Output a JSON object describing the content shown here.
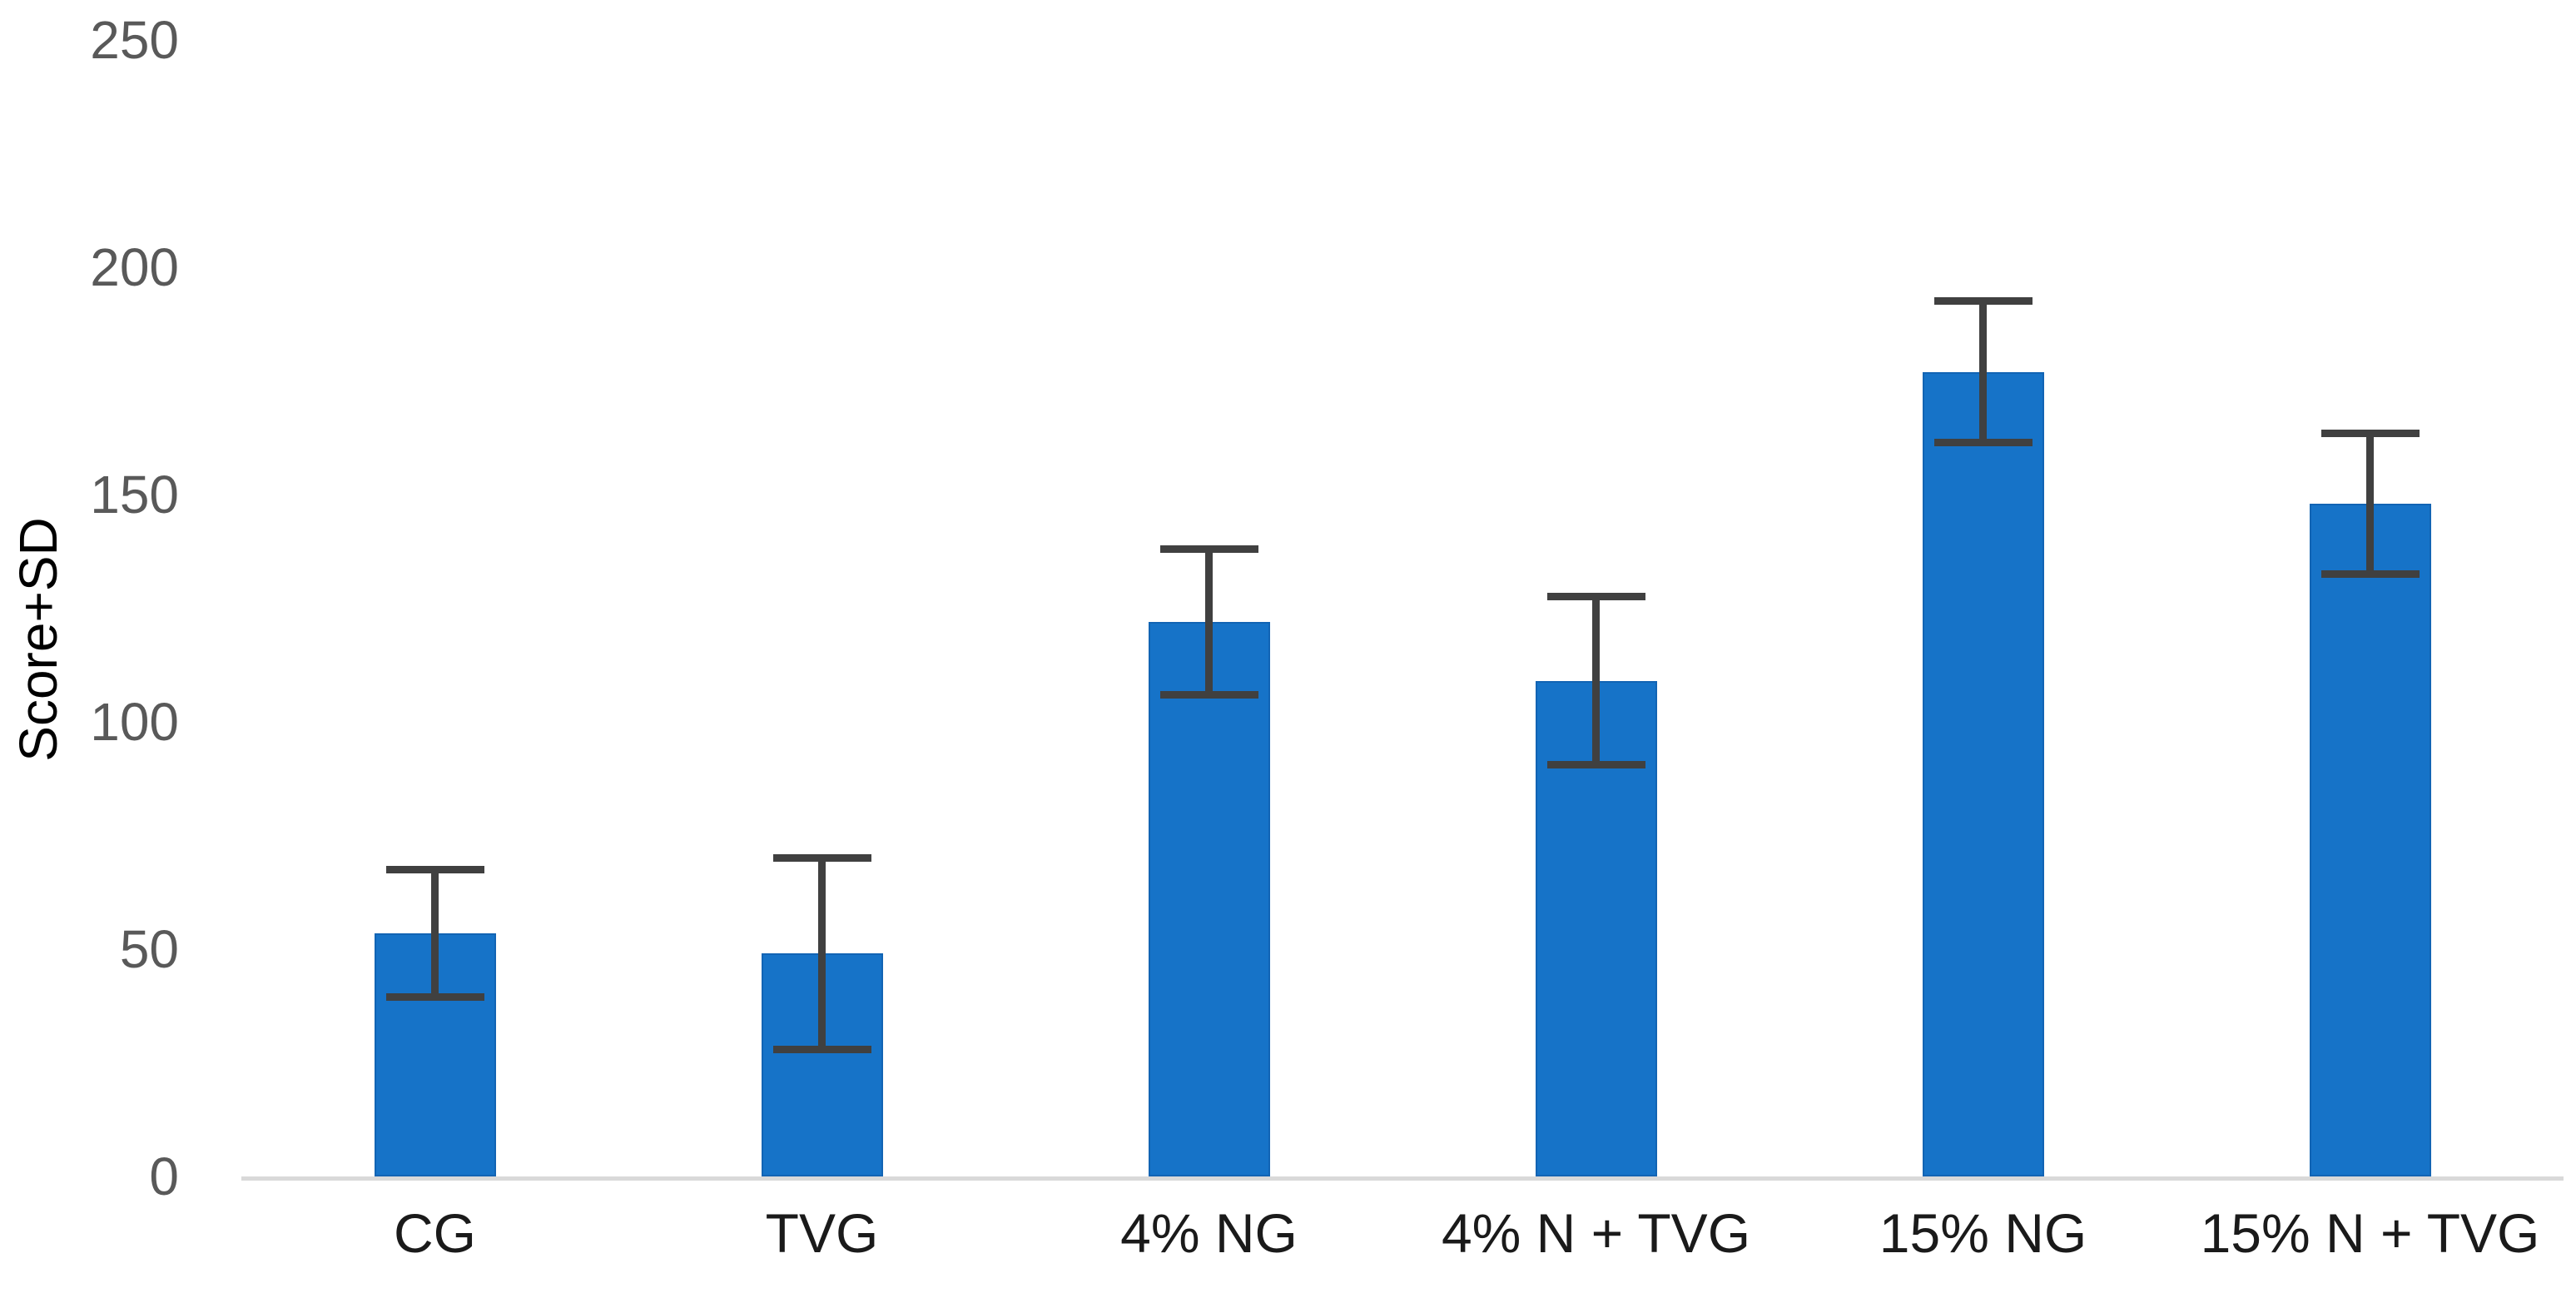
{
  "chart_data": {
    "type": "bar",
    "title": "",
    "xlabel": "",
    "ylabel": "Score+SD",
    "categories": [
      "CG",
      "TVG",
      "4% NG",
      "4% N + TVG",
      "15% NG",
      "15% N + TVG"
    ],
    "series": [
      {
        "name": "Score+SD",
        "values": [
          53.5,
          49,
          122,
          109,
          177,
          148
        ]
      }
    ],
    "error_sd": [
      14,
      21,
      16,
      18.5,
      15.5,
      15.5
    ],
    "yticks": [
      0,
      50,
      100,
      150,
      200,
      250
    ],
    "ylim": [
      0,
      250
    ],
    "grid": false,
    "legend_position": "none",
    "error_bars": "both-whiskers-with-caps",
    "colors": {
      "bar_fill": "#1673C8",
      "error_bar": "#404040",
      "axis_line": "#D9D9D9",
      "y_tick_label": "#595959",
      "x_category_label": "#1A1A1A",
      "y_axis_title": "#000000",
      "background": "#FFFFFF"
    }
  }
}
